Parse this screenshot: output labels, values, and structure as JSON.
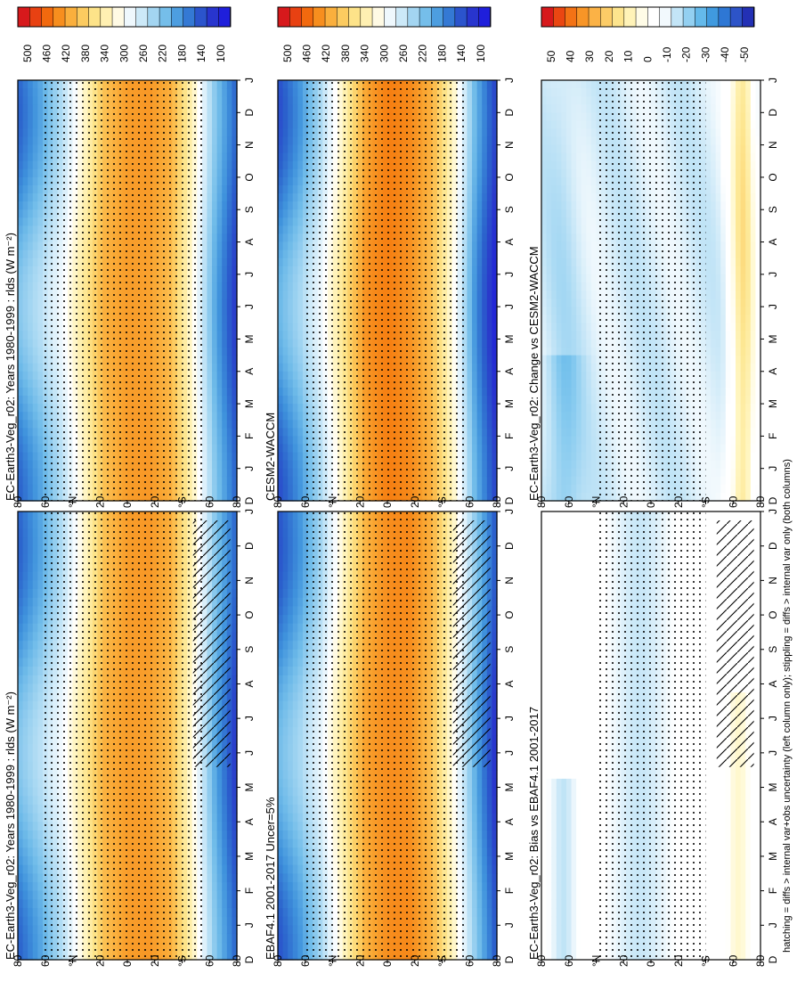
{
  "figure": {
    "footnote": "hatching = diffs > internal var+obs uncertainty (left column only); stippling = diffs > internal var only (both columns)"
  },
  "chart_data": [
    {
      "type": "heatmap",
      "title": "EC-Earth3-Veg_r02: Years 1980-1999 : rlds (W m⁻²)",
      "x": [
        "D",
        "J",
        "F",
        "M",
        "A",
        "M",
        "J",
        "J",
        "A",
        "S",
        "O",
        "N",
        "D",
        "J"
      ],
      "y_ticks": [
        "80",
        "60",
        "°N",
        "20",
        "0",
        "20",
        "°S",
        "60",
        "80"
      ],
      "colorbar": [
        "500",
        "460",
        "420",
        "380",
        "340",
        "300",
        "260",
        "220",
        "180",
        "140",
        "100"
      ],
      "stipple": true,
      "hatch": true,
      "z_profile_lat_north_to_south": [
        190,
        225,
        270,
        335,
        400,
        420,
        420,
        400,
        320,
        215,
        140
      ]
    },
    {
      "type": "heatmap",
      "title": "EC-Earth3-Veg_r02: Years 1980-1999 : rlds (W m⁻²)",
      "x": [
        "D",
        "J",
        "F",
        "M",
        "A",
        "M",
        "J",
        "J",
        "A",
        "S",
        "O",
        "N",
        "D",
        "J"
      ],
      "y_ticks": [
        "80",
        "60",
        "°N",
        "20",
        "0",
        "20",
        "°S",
        "60",
        "80"
      ],
      "colorbar": [
        "500",
        "460",
        "420",
        "380",
        "340",
        "300",
        "260",
        "220",
        "180",
        "140",
        "100"
      ],
      "stipple": true,
      "hatch": false,
      "z_profile_lat_north_to_south": [
        190,
        225,
        270,
        335,
        400,
        420,
        420,
        400,
        320,
        215,
        140
      ]
    },
    {
      "type": "heatmap",
      "title": "EBAF4.1 2001-2017 Uncer=5%",
      "x": [
        "D",
        "J",
        "F",
        "M",
        "A",
        "M",
        "J",
        "J",
        "A",
        "S",
        "O",
        "N",
        "D",
        "J"
      ],
      "y_ticks": [
        "80",
        "60",
        "°N",
        "20",
        "0",
        "20",
        "°S",
        "60",
        "80"
      ],
      "colorbar": [
        "500",
        "460",
        "420",
        "380",
        "340",
        "300",
        "260",
        "220",
        "180",
        "140",
        "100"
      ],
      "stipple": true,
      "hatch": true,
      "z_profile_lat_north_to_south": [
        180,
        215,
        265,
        340,
        410,
        430,
        430,
        400,
        320,
        220,
        130
      ]
    },
    {
      "type": "heatmap",
      "title": "CESM2-WACCM",
      "x": [
        "D",
        "J",
        "F",
        "M",
        "A",
        "M",
        "J",
        "J",
        "A",
        "S",
        "O",
        "N",
        "D",
        "J"
      ],
      "y_ticks": [
        "80",
        "60",
        "°N",
        "20",
        "0",
        "20",
        "°S",
        "60",
        "80"
      ],
      "colorbar": [
        "500",
        "460",
        "420",
        "380",
        "340",
        "300",
        "260",
        "220",
        "180",
        "140",
        "100"
      ],
      "stipple": true,
      "hatch": false,
      "z_profile_lat_north_to_south": [
        175,
        215,
        270,
        345,
        420,
        440,
        430,
        400,
        320,
        200,
        115
      ]
    },
    {
      "type": "heatmap",
      "title": "EC-Earth3-Veg_r02: Bias vs EBAF4.1 2001-2017",
      "x": [
        "D",
        "J",
        "F",
        "M",
        "A",
        "M",
        "J",
        "J",
        "A",
        "S",
        "O",
        "N",
        "D",
        "J"
      ],
      "y_ticks": [
        "80",
        "60",
        "°N",
        "20",
        "0",
        "20",
        "°S",
        "60",
        "80"
      ],
      "colorbar": [
        "50",
        "40",
        "30",
        "20",
        "10",
        "0",
        "-10",
        "-20",
        "-30",
        "-40",
        "-50"
      ],
      "stipple": true,
      "hatch": true
    },
    {
      "type": "heatmap",
      "title": "EC-Earth3-Veg_r02: Change vs CESM2-WACCM",
      "x": [
        "D",
        "J",
        "F",
        "M",
        "A",
        "M",
        "J",
        "J",
        "A",
        "S",
        "O",
        "N",
        "D",
        "J"
      ],
      "y_ticks": [
        "80",
        "60",
        "°N",
        "20",
        "0",
        "20",
        "°S",
        "60",
        "80"
      ],
      "colorbar": [
        "50",
        "40",
        "30",
        "20",
        "10",
        "0",
        "-10",
        "-20",
        "-30",
        "-40",
        "-50"
      ],
      "stipple": true,
      "hatch": false
    }
  ]
}
